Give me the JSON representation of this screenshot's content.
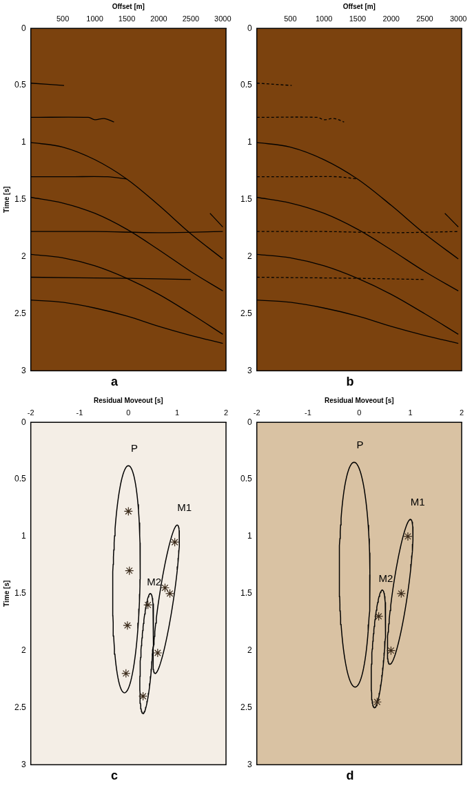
{
  "chart_data": [
    {
      "type": "line",
      "title": "a",
      "x_label": "Offset [m]",
      "y_label": "Time [s]",
      "xlim": [
        0,
        3050
      ],
      "xticks": [
        500,
        1000,
        1500,
        2000,
        2500,
        3000
      ],
      "ylim": [
        0,
        3
      ],
      "yticks": [
        0,
        0.5,
        1,
        1.5,
        2,
        2.5,
        3
      ],
      "grid": false,
      "series": [
        {
          "color": "#000000",
          "x": [
            0,
            520
          ],
          "values": [
            0.48,
            0.5
          ]
        },
        {
          "color": "#000000",
          "x": [
            0,
            900,
            1000,
            1150,
            1300
          ],
          "values": [
            0.78,
            0.78,
            0.8,
            0.79,
            0.82
          ]
        },
        {
          "color": "#000000",
          "x": [
            0,
            500,
            1000,
            1500,
            2000,
            2500,
            3000
          ],
          "values": [
            1.0,
            1.04,
            1.15,
            1.32,
            1.55,
            1.8,
            2.02
          ]
        },
        {
          "color": "#000000",
          "x": [
            0,
            600,
            1200,
            1500
          ],
          "values": [
            1.3,
            1.3,
            1.3,
            1.32
          ]
        },
        {
          "color": "#000000",
          "x": [
            0,
            500,
            1000,
            1500,
            2000,
            2500,
            3000
          ],
          "values": [
            1.48,
            1.53,
            1.62,
            1.76,
            1.94,
            2.13,
            2.3
          ]
        },
        {
          "color": "#000000",
          "x": [
            0,
            1000,
            2000,
            3000
          ],
          "values": [
            1.78,
            1.78,
            1.79,
            1.78
          ]
        },
        {
          "color": "#000000",
          "x": [
            0,
            500,
            1000,
            1500,
            2000,
            2500,
            3000
          ],
          "values": [
            1.98,
            2.01,
            2.08,
            2.19,
            2.33,
            2.5,
            2.68
          ]
        },
        {
          "color": "#000000",
          "x": [
            0,
            1500,
            2500
          ],
          "values": [
            2.18,
            2.19,
            2.2
          ]
        },
        {
          "color": "#000000",
          "x": [
            0,
            500,
            1000,
            1500,
            2000,
            2500,
            3000
          ],
          "values": [
            2.38,
            2.4,
            2.45,
            2.52,
            2.61,
            2.69,
            2.76
          ]
        },
        {
          "color": "#000000",
          "x": [
            2800,
            2900,
            3000
          ],
          "values": [
            1.62,
            1.68,
            1.74
          ]
        }
      ]
    },
    {
      "type": "line",
      "title": "b",
      "x_label": "Offset [m]",
      "xlim": [
        0,
        3050
      ],
      "xticks": [
        500,
        1000,
        1500,
        2000,
        2500,
        3000
      ],
      "ylim": [
        0,
        3
      ],
      "yticks": [
        0,
        0.5,
        1,
        1.5,
        2,
        2.5,
        3
      ],
      "grid": false,
      "series": [
        {
          "color": "#000000",
          "line_style": "dashed",
          "x": [
            0,
            520
          ],
          "values": [
            0.48,
            0.5
          ]
        },
        {
          "color": "#000000",
          "line_style": "dashed",
          "x": [
            0,
            900,
            1000,
            1150,
            1300
          ],
          "values": [
            0.78,
            0.78,
            0.8,
            0.79,
            0.82
          ]
        },
        {
          "color": "#000000",
          "x": [
            0,
            500,
            1000,
            1500,
            2000,
            2500,
            3000
          ],
          "values": [
            1.0,
            1.04,
            1.15,
            1.32,
            1.55,
            1.8,
            2.02
          ]
        },
        {
          "color": "#000000",
          "line_style": "dashed",
          "x": [
            0,
            600,
            1200,
            1500
          ],
          "values": [
            1.3,
            1.3,
            1.3,
            1.32
          ]
        },
        {
          "color": "#000000",
          "x": [
            0,
            500,
            1000,
            1500,
            2000,
            2500,
            3000
          ],
          "values": [
            1.48,
            1.53,
            1.62,
            1.76,
            1.94,
            2.13,
            2.3
          ]
        },
        {
          "color": "#000000",
          "line_style": "dashed",
          "x": [
            0,
            1000,
            2000,
            3000
          ],
          "values": [
            1.78,
            1.78,
            1.79,
            1.78
          ]
        },
        {
          "color": "#000000",
          "x": [
            0,
            500,
            1000,
            1500,
            2000,
            2500,
            3000
          ],
          "values": [
            1.98,
            2.01,
            2.08,
            2.19,
            2.33,
            2.5,
            2.68
          ]
        },
        {
          "color": "#000000",
          "line_style": "dashed",
          "x": [
            0,
            1500,
            2500
          ],
          "values": [
            2.18,
            2.19,
            2.2
          ]
        },
        {
          "color": "#000000",
          "x": [
            0,
            500,
            1000,
            1500,
            2000,
            2500,
            3000
          ],
          "values": [
            2.38,
            2.4,
            2.45,
            2.52,
            2.61,
            2.69,
            2.76
          ]
        },
        {
          "color": "#000000",
          "x": [
            2800,
            2900,
            3000
          ],
          "values": [
            1.62,
            1.68,
            1.74
          ]
        }
      ]
    },
    {
      "type": "scatter",
      "title": "c",
      "x_label": "Residual Moveout [s]",
      "y_label": "Time [s]",
      "xlim": [
        -2,
        2
      ],
      "xticks": [
        -2,
        -1,
        0,
        1,
        2
      ],
      "ylim": [
        0,
        3
      ],
      "yticks": [
        0,
        0.5,
        1,
        1.5,
        2,
        2.5,
        3
      ],
      "grid": false,
      "series": [
        {
          "color": "#3a2a1a",
          "marker": "star",
          "x": [
            0,
            0.02,
            -0.02,
            -0.05,
            0.95,
            0.85,
            0.75,
            0.6,
            0.4,
            0.3
          ],
          "values": [
            0.78,
            1.3,
            1.78,
            2.2,
            1.05,
            1.5,
            1.45,
            2.02,
            1.6,
            2.4
          ]
        }
      ],
      "ellipses": [
        {
          "label": "P",
          "top": [
            0,
            0.38
          ],
          "bottom": [
            -0.08,
            2.37
          ],
          "half_width": 0.28,
          "label_at": [
            0.05,
            0.28
          ]
        },
        {
          "label": "M1",
          "top": [
            1.0,
            0.9
          ],
          "bottom": [
            0.55,
            2.2
          ],
          "half_width": 0.15,
          "label_at": [
            1.0,
            0.8
          ]
        },
        {
          "label": "M2",
          "top": [
            0.45,
            1.5
          ],
          "bottom": [
            0.3,
            2.55
          ],
          "half_width": 0.12,
          "label_at": [
            0.38,
            1.45
          ]
        }
      ]
    },
    {
      "type": "scatter",
      "title": "d",
      "x_label": "Residual Moveout [s]",
      "xlim": [
        -2,
        2
      ],
      "xticks": [
        -2,
        -1,
        0,
        1,
        2
      ],
      "ylim": [
        0,
        3
      ],
      "yticks": [
        0,
        0.5,
        1,
        1.5,
        2,
        2.5,
        3
      ],
      "grid": false,
      "series": [
        {
          "color": "#3a2a1a",
          "marker": "star",
          "x": [
            0.95,
            0.82,
            0.62,
            0.38,
            0.35
          ],
          "values": [
            1.0,
            1.5,
            2.0,
            1.7,
            2.45
          ]
        }
      ],
      "ellipses": [
        {
          "label": "P",
          "top": [
            -0.1,
            0.35
          ],
          "bottom": [
            -0.08,
            2.32
          ],
          "half_width": 0.3,
          "label_at": [
            -0.05,
            0.25
          ]
        },
        {
          "label": "M1",
          "top": [
            1.0,
            0.85
          ],
          "bottom": [
            0.6,
            2.12
          ],
          "half_width": 0.15,
          "label_at": [
            1.0,
            0.75
          ]
        },
        {
          "label": "M2",
          "top": [
            0.45,
            1.47
          ],
          "bottom": [
            0.3,
            2.5
          ],
          "half_width": 0.12,
          "label_at": [
            0.38,
            1.42
          ]
        }
      ]
    }
  ]
}
